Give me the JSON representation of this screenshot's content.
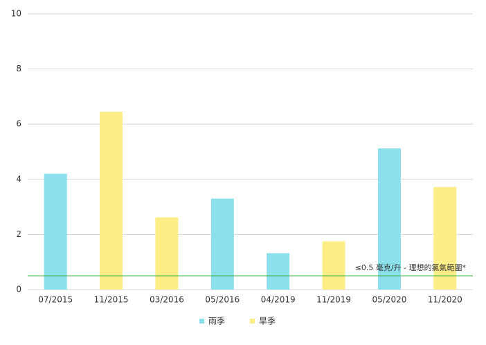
{
  "chart_data": {
    "type": "bar",
    "categories": [
      "07/2015",
      "11/2015",
      "03/2016",
      "05/2016",
      "04/2019",
      "11/2019",
      "05/2020",
      "11/2020"
    ],
    "series": [
      {
        "name": "雨季",
        "color": "#8be0ec",
        "values": [
          4.2,
          null,
          null,
          3.3,
          1.32,
          null,
          5.12,
          null
        ]
      },
      {
        "name": "旱季",
        "color": "#fdee88",
        "values": [
          null,
          6.45,
          2.62,
          null,
          null,
          1.75,
          null,
          3.72
        ]
      }
    ],
    "ylim": [
      0,
      10
    ],
    "yticks": [
      0,
      2,
      4,
      6,
      8,
      10
    ],
    "grid": true,
    "reference_line": {
      "value": 0.5,
      "label": "≤0.5 毫克/升 - 理想的氯氣範圍*",
      "color": "#2ca02c"
    },
    "legend": "bottom"
  }
}
